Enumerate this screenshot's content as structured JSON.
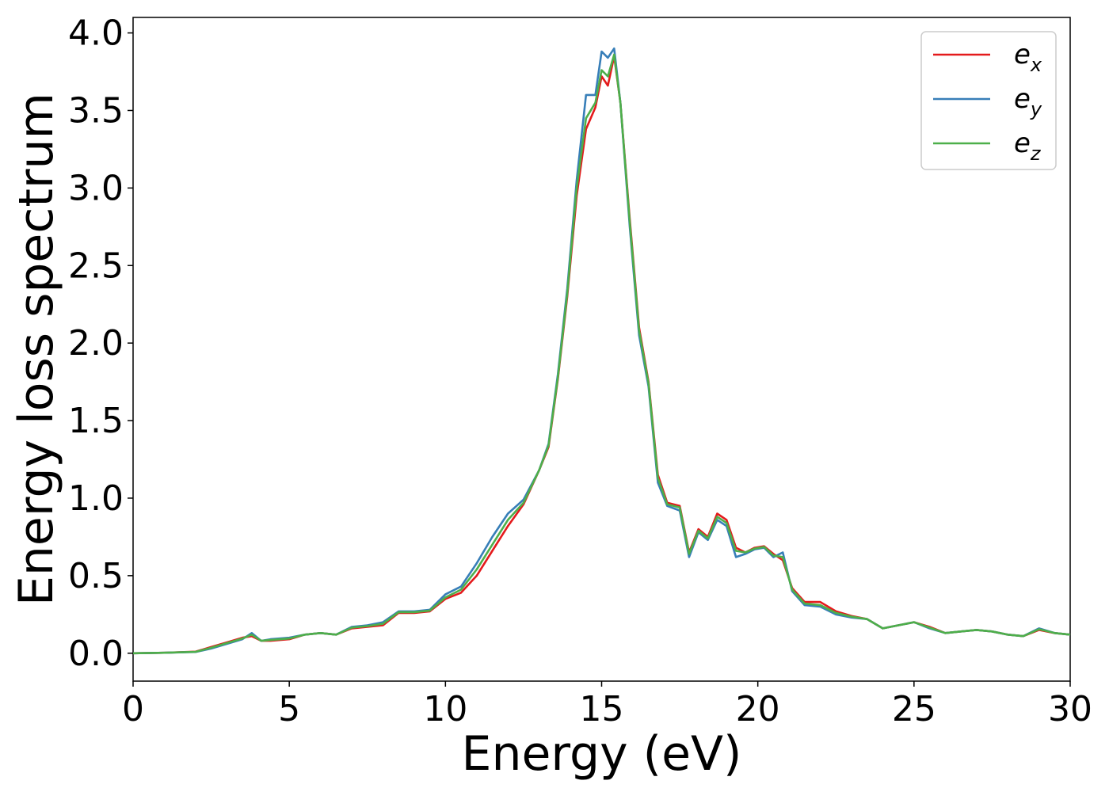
{
  "chart_data": {
    "type": "line",
    "xlabel": "Energy (eV)",
    "ylabel": "Energy loss spectrum",
    "xlim": [
      0,
      30
    ],
    "ylim": [
      -0.18,
      4.1
    ],
    "xticks": [
      "0",
      "5",
      "10",
      "15",
      "20",
      "25",
      "30"
    ],
    "yticks": [
      "0.0",
      "0.5",
      "1.0",
      "1.5",
      "2.0",
      "2.5",
      "3.0",
      "3.5",
      "4.0"
    ],
    "grid": false,
    "legend_position": "top-right",
    "x": [
      0,
      1,
      2,
      2.5,
      3,
      3.5,
      3.8,
      4.1,
      4.4,
      5,
      5.5,
      6,
      6.5,
      7,
      7.5,
      8,
      8.5,
      9,
      9.5,
      10,
      10.5,
      11,
      11.5,
      12,
      12.5,
      13,
      13.3,
      13.6,
      13.9,
      14.2,
      14.5,
      14.8,
      15.0,
      15.2,
      15.4,
      15.6,
      15.9,
      16.2,
      16.5,
      16.8,
      17.1,
      17.5,
      17.8,
      18.1,
      18.4,
      18.7,
      19.0,
      19.3,
      19.6,
      19.9,
      20.2,
      20.5,
      20.8,
      21.1,
      21.5,
      22,
      22.5,
      23,
      23.5,
      24,
      24.5,
      25,
      25.5,
      26,
      26.5,
      27,
      27.5,
      28,
      28.5,
      29,
      29.5,
      30
    ],
    "series": [
      {
        "name": "x",
        "color": "#e41a1c",
        "values": [
          0.0,
          0.003,
          0.01,
          0.04,
          0.07,
          0.1,
          0.11,
          0.08,
          0.08,
          0.09,
          0.12,
          0.13,
          0.12,
          0.16,
          0.17,
          0.18,
          0.26,
          0.26,
          0.27,
          0.35,
          0.39,
          0.5,
          0.66,
          0.82,
          0.96,
          1.18,
          1.33,
          1.77,
          2.3,
          2.95,
          3.38,
          3.52,
          3.72,
          3.66,
          3.85,
          3.55,
          2.8,
          2.1,
          1.75,
          1.15,
          0.97,
          0.95,
          0.65,
          0.8,
          0.75,
          0.9,
          0.86,
          0.68,
          0.65,
          0.68,
          0.69,
          0.64,
          0.6,
          0.42,
          0.33,
          0.33,
          0.27,
          0.24,
          0.22,
          0.16,
          0.18,
          0.2,
          0.17,
          0.13,
          0.14,
          0.15,
          0.14,
          0.12,
          0.11,
          0.15,
          0.13,
          0.12
        ]
      },
      {
        "name": "y",
        "color": "#377eb8",
        "values": [
          0.0,
          0.003,
          0.008,
          0.03,
          0.06,
          0.09,
          0.13,
          0.08,
          0.09,
          0.1,
          0.12,
          0.13,
          0.12,
          0.17,
          0.18,
          0.2,
          0.27,
          0.27,
          0.28,
          0.38,
          0.43,
          0.58,
          0.75,
          0.9,
          0.99,
          1.18,
          1.35,
          1.8,
          2.35,
          3.05,
          3.6,
          3.6,
          3.88,
          3.84,
          3.9,
          3.55,
          2.75,
          2.05,
          1.72,
          1.1,
          0.95,
          0.92,
          0.62,
          0.78,
          0.73,
          0.86,
          0.82,
          0.62,
          0.64,
          0.67,
          0.68,
          0.62,
          0.65,
          0.4,
          0.31,
          0.3,
          0.25,
          0.23,
          0.22,
          0.16,
          0.18,
          0.2,
          0.16,
          0.13,
          0.14,
          0.15,
          0.14,
          0.12,
          0.11,
          0.16,
          0.13,
          0.12
        ]
      },
      {
        "name": "z",
        "color": "#4daf4a",
        "values": [
          0.0,
          0.003,
          0.009,
          0.035,
          0.065,
          0.095,
          0.12,
          0.08,
          0.085,
          0.095,
          0.12,
          0.13,
          0.12,
          0.165,
          0.175,
          0.19,
          0.265,
          0.265,
          0.275,
          0.36,
          0.41,
          0.54,
          0.7,
          0.86,
          0.97,
          1.18,
          1.34,
          1.78,
          2.32,
          3.0,
          3.45,
          3.55,
          3.76,
          3.72,
          3.86,
          3.55,
          2.78,
          2.08,
          1.74,
          1.13,
          0.96,
          0.94,
          0.64,
          0.79,
          0.74,
          0.88,
          0.84,
          0.66,
          0.65,
          0.675,
          0.685,
          0.63,
          0.62,
          0.41,
          0.32,
          0.31,
          0.26,
          0.235,
          0.22,
          0.16,
          0.18,
          0.2,
          0.165,
          0.13,
          0.14,
          0.15,
          0.14,
          0.12,
          0.11,
          0.155,
          0.13,
          0.12
        ]
      }
    ],
    "legend": [
      {
        "base": "e",
        "sub": "x",
        "color": "#e41a1c"
      },
      {
        "base": "e",
        "sub": "y",
        "color": "#377eb8"
      },
      {
        "base": "e",
        "sub": "z",
        "color": "#4daf4a"
      }
    ]
  }
}
